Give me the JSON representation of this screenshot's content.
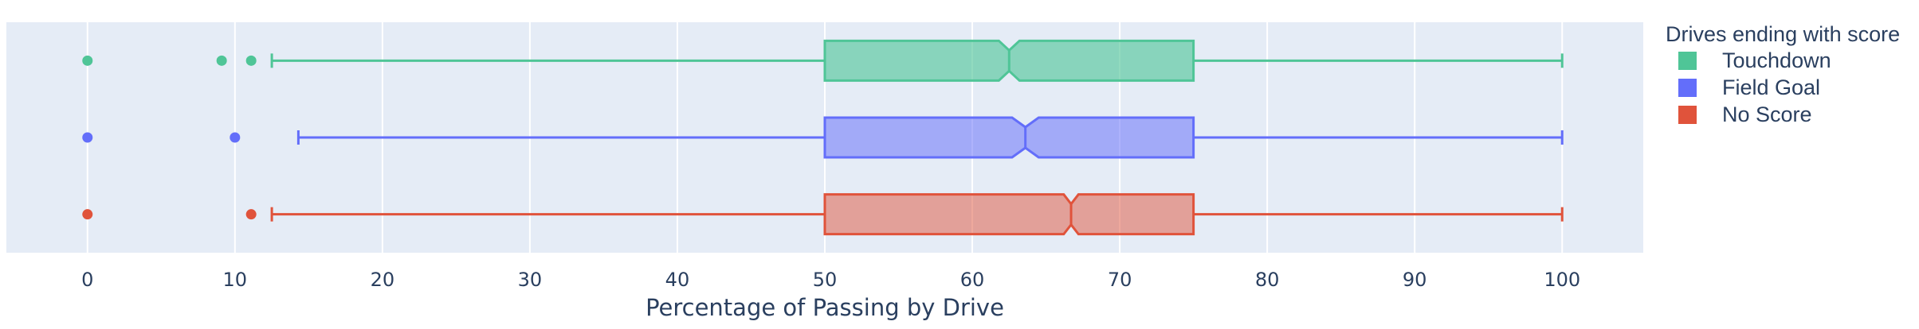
{
  "chart_data": {
    "type": "box",
    "orientation": "horizontal",
    "notched": true,
    "title": "",
    "xlabel": "Percentage of Passing by Drive",
    "ylabel": "",
    "xlim": [
      -5.5,
      105.5
    ],
    "xticks": [
      0,
      10,
      20,
      30,
      40,
      50,
      60,
      70,
      80,
      90,
      100
    ],
    "grid": true,
    "legend": {
      "title": "Drives ending with score",
      "position": "right"
    },
    "series": [
      {
        "name": "Touchdown",
        "color": "#4fc597",
        "fill": "rgba(79,197,151,0.62)",
        "q1": 50,
        "median": 62.5,
        "q3": 75,
        "notch_low": 61.8,
        "notch_high": 63.2,
        "whisker_low": 12.5,
        "whisker_high": 100,
        "outliers": [
          0,
          9.1,
          11.1
        ]
      },
      {
        "name": "Field Goal",
        "color": "#636efa",
        "fill": "rgba(99,110,250,0.52)",
        "q1": 50,
        "median": 63.6,
        "q3": 75,
        "notch_low": 62.7,
        "notch_high": 64.5,
        "whisker_low": 14.3,
        "whisker_high": 100,
        "outliers": [
          0,
          10
        ]
      },
      {
        "name": "No Score",
        "color": "#e0533b",
        "fill": "rgba(224,83,59,0.5)",
        "q1": 50,
        "median": 66.7,
        "q3": 75,
        "notch_low": 66.2,
        "notch_high": 67.2,
        "whisker_low": 12.5,
        "whisker_high": 100,
        "outliers": [
          0,
          11.1
        ]
      }
    ]
  }
}
